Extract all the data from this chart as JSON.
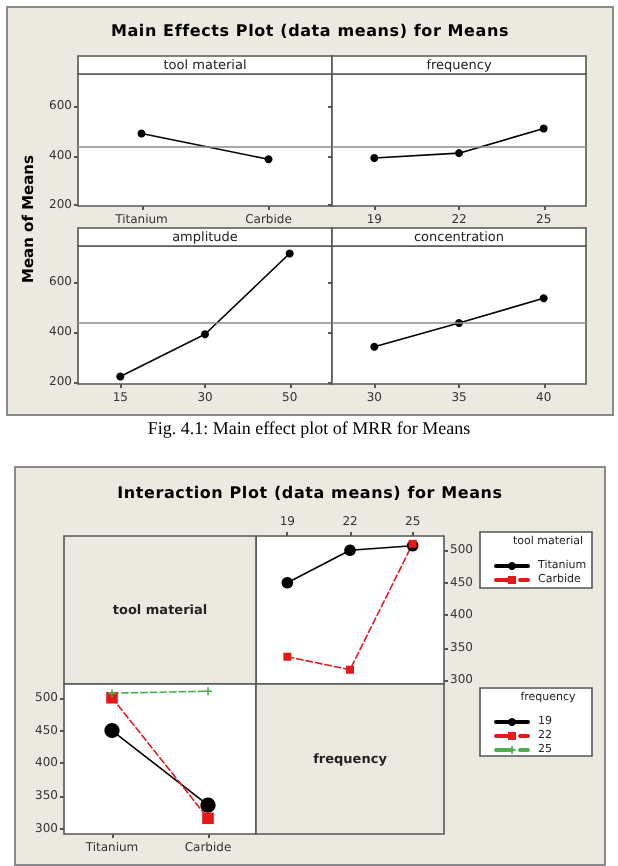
{
  "chart_data": [
    {
      "type": "line",
      "title": "Main Effects Plot (data means) for Means",
      "ylabel": "Mean of Means",
      "xlabel": "tool material",
      "annotations": [
        "Fig. 4.1: Main effect plot of MRR for Means"
      ],
      "categories": [
        "Titanium",
        "Carbide"
      ],
      "series": [
        {
          "color": "#000000",
          "values": [
            490,
            385
          ]
        }
      ],
      "ylim": [
        195,
        732
      ],
      "yticks": [
        200,
        400,
        600
      ],
      "ref_lines": [
        {
          "axis": "y",
          "value": 440,
          "color": "#8c8c8c"
        }
      ],
      "marker": "circle"
    },
    {
      "type": "line",
      "xlabel": "frequency",
      "categories": [
        "19",
        "22",
        "25"
      ],
      "series": [
        {
          "color": "#000000",
          "values": [
            390,
            410,
            510
          ]
        }
      ],
      "ylim": [
        195,
        732
      ],
      "yticks": [
        200,
        400,
        600
      ],
      "ref_lines": [
        {
          "axis": "y",
          "value": 440,
          "color": "#8c8c8c"
        }
      ],
      "marker": "circle",
      "tick_labels": "x"
    },
    {
      "type": "line",
      "xlabel": "amplitude",
      "categories": [
        "15",
        "30",
        "50"
      ],
      "series": [
        {
          "color": "#000000",
          "values": [
            220,
            390,
            715
          ]
        }
      ],
      "ylim": [
        190,
        745
      ],
      "yticks": [
        200,
        400,
        600
      ],
      "ref_lines": [
        {
          "axis": "y",
          "value": 440,
          "color": "#8c8c8c"
        }
      ],
      "marker": "circle"
    },
    {
      "type": "line",
      "xlabel": "concentration",
      "categories": [
        "30",
        "35",
        "40"
      ],
      "series": [
        {
          "color": "#000000",
          "values": [
            340,
            435,
            535
          ]
        }
      ],
      "ylim": [
        190,
        745
      ],
      "yticks": [
        200,
        400,
        600
      ],
      "ref_lines": [
        {
          "axis": "y",
          "value": 440,
          "color": "#8c8c8c"
        }
      ],
      "marker": "circle",
      "tick_labels": "x"
    },
    {
      "type": "line",
      "title": "Interaction Plot (data means) for Means",
      "ylabel": "tool material",
      "legend_title": "tool material",
      "legend": "right",
      "categories": [
        "19",
        "22",
        "25"
      ],
      "ylim": [
        294,
        522
      ],
      "yticks": [
        300,
        350,
        400,
        450,
        500
      ],
      "series": [
        {
          "name": "Titanium",
          "color": "#000000",
          "values": [
            450,
            500,
            507
          ],
          "marker": "circle",
          "line_style": "solid"
        },
        {
          "name": "Carbide",
          "color": "#e3191c",
          "values": [
            336,
            316,
            510
          ],
          "marker": "square",
          "line_style": "dashed"
        }
      ]
    },
    {
      "type": "line",
      "xlabel": "frequency",
      "legend_title": "frequency",
      "legend": "right",
      "categories": [
        "Titanium",
        "Carbide"
      ],
      "ylim": [
        292,
        521
      ],
      "yticks": [
        300,
        350,
        400,
        450,
        500
      ],
      "series": [
        {
          "name": "19",
          "color": "#000000",
          "values": [
            450,
            336
          ],
          "marker": "circle",
          "line_style": "solid"
        },
        {
          "name": "22",
          "color": "#e3191c",
          "values": [
            500,
            316
          ],
          "marker": "square",
          "line_style": "dashed"
        },
        {
          "name": "25",
          "color": "#4caf50",
          "values": [
            507,
            510
          ],
          "marker": "cross",
          "line_style": "dashed"
        }
      ]
    }
  ]
}
